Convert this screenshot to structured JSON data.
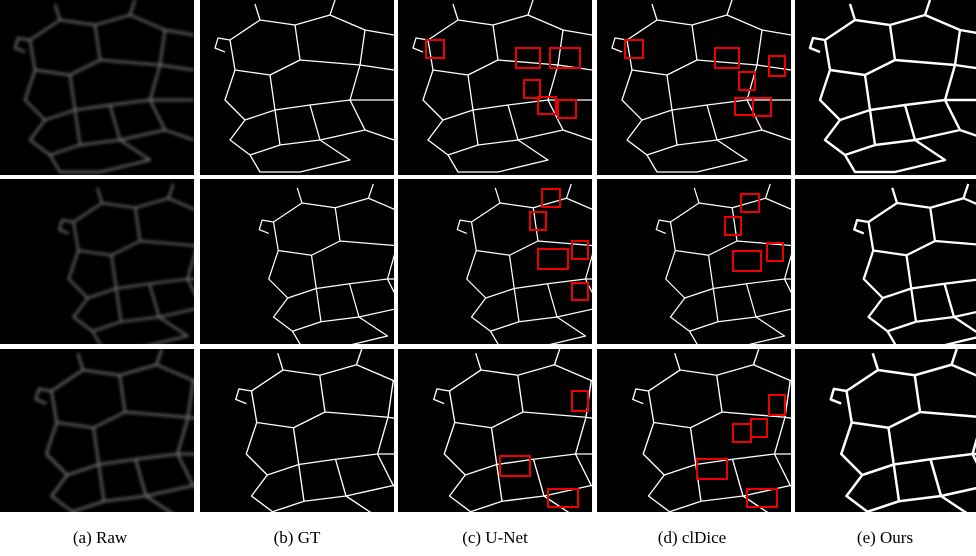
{
  "figure": {
    "captions": [
      "(a) Raw",
      "(b) GT",
      "(c) U-Net",
      "(d) clDice",
      "(e) Ours"
    ]
  }
}
